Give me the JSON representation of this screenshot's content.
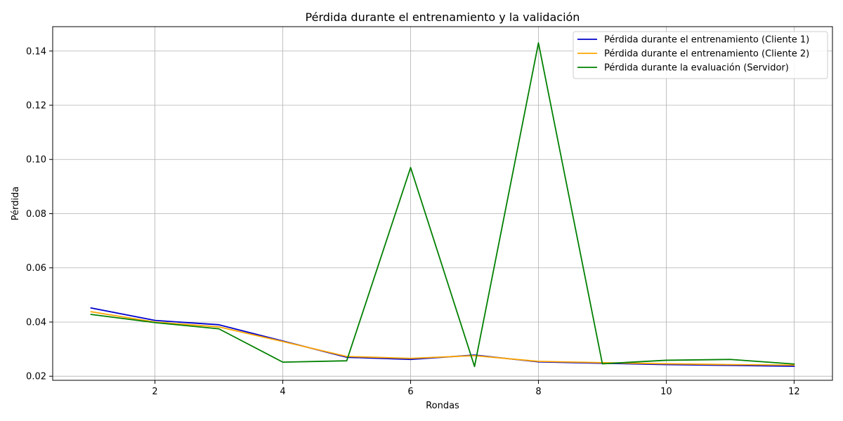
{
  "chart_data": {
    "type": "line",
    "title": "Pérdida durante el entrenamiento y la validación",
    "xlabel": "Rondas",
    "ylabel": "Pérdida",
    "x": [
      1,
      2,
      3,
      4,
      5,
      6,
      7,
      8,
      9,
      10,
      11,
      12
    ],
    "xlim": [
      0.4,
      12.6
    ],
    "ylim": [
      0.0185,
      0.149
    ],
    "xticks": [
      2,
      4,
      6,
      8,
      10,
      12
    ],
    "yticks": [
      0.02,
      0.04,
      0.06,
      0.08,
      0.1,
      0.12,
      0.14
    ],
    "ytick_labels": [
      "0.02",
      "0.04",
      "0.06",
      "0.08",
      "0.10",
      "0.12",
      "0.14"
    ],
    "grid": true,
    "legend_position": "top-right",
    "series": [
      {
        "name": "Pérdida durante el entrenamiento (Cliente 1)",
        "color": "#0000cc",
        "values": [
          0.0452,
          0.0406,
          0.039,
          0.033,
          0.027,
          0.0262,
          0.0278,
          0.0253,
          0.0248,
          0.0243,
          0.024,
          0.0237
        ]
      },
      {
        "name": "Pérdida durante el entrenamiento (Cliente 2)",
        "color": "#ffa500",
        "values": [
          0.0438,
          0.04,
          0.0382,
          0.0328,
          0.0273,
          0.0266,
          0.0276,
          0.0255,
          0.025,
          0.0246,
          0.0243,
          0.0241
        ]
      },
      {
        "name": "Pérdida durante la evaluación (Servidor)",
        "color": "#008000",
        "values": [
          0.0428,
          0.0398,
          0.0375,
          0.0252,
          0.0257,
          0.097,
          0.0236,
          0.143,
          0.0246,
          0.0259,
          0.0262,
          0.0245
        ]
      }
    ]
  }
}
